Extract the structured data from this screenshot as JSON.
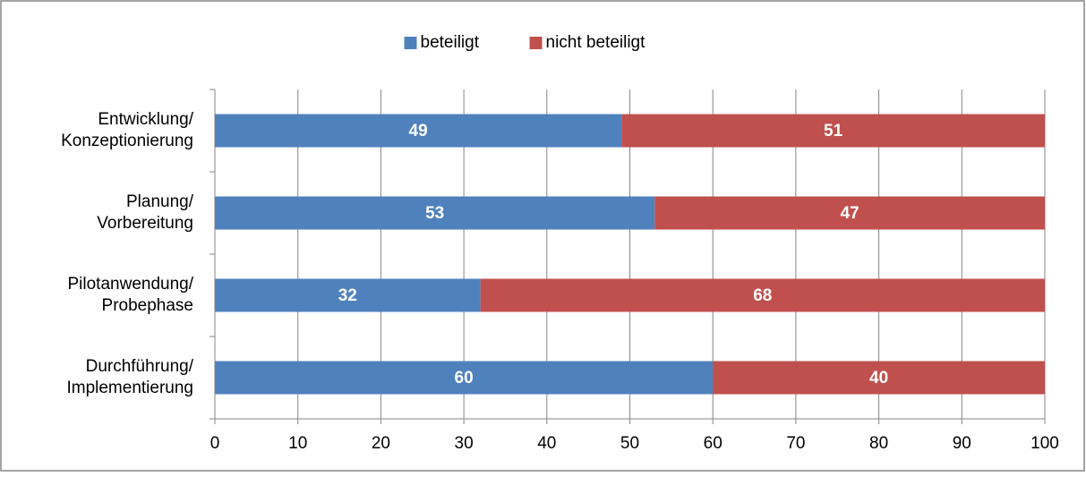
{
  "chart_data": {
    "type": "stacked_barh",
    "categories": [
      "Entwicklung/\nKonzeptionierung",
      "Planung/\nVorbereitung",
      "Pilotanwendung/\nProbephase",
      "Durchführung/\nImplementierung"
    ],
    "series": [
      {
        "name": "beteiligt",
        "color": "#4f81bd",
        "values": [
          49,
          53,
          32,
          60
        ]
      },
      {
        "name": "nicht beteiligt",
        "color": "#c0504d",
        "values": [
          51,
          47,
          68,
          40
        ]
      }
    ],
    "xlim": [
      0,
      100
    ],
    "xticks": [
      0,
      10,
      20,
      30,
      40,
      50,
      60,
      70,
      80,
      90,
      100
    ],
    "grid": true,
    "legend": "top"
  }
}
